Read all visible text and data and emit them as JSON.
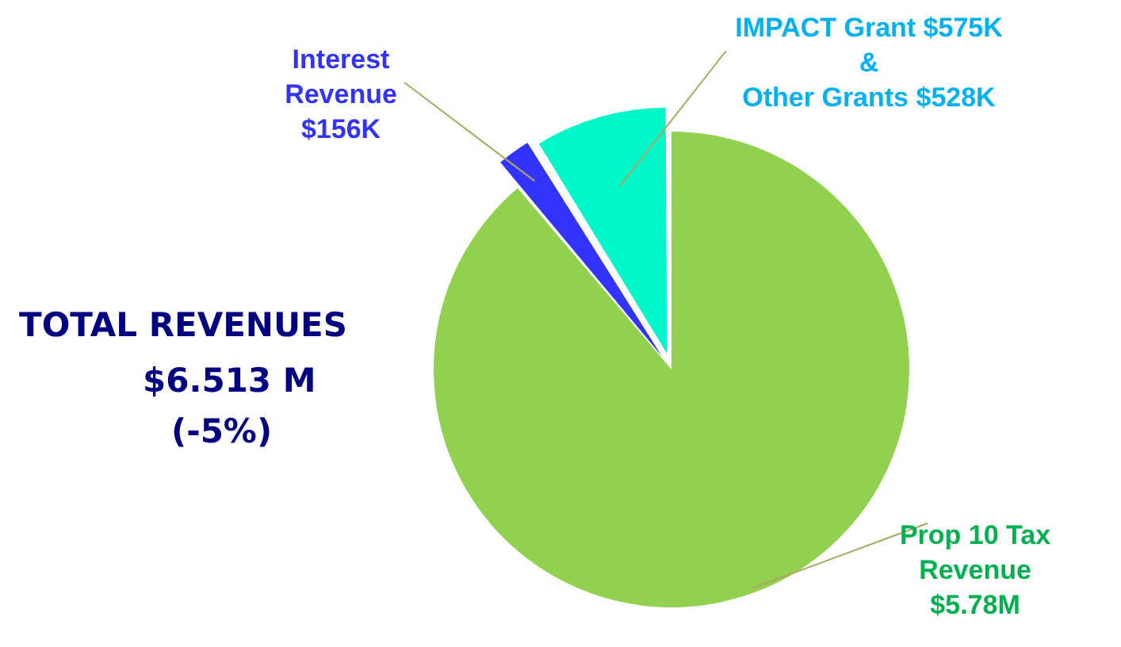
{
  "chart_data": {
    "type": "pie",
    "categories": [
      "Prop 10 Tax\nRevenue\n$5.78M",
      "Interest\nRevenue\n$156K",
      "IMPACT Grant $575K\n&\nOther Grants $528K"
    ],
    "values": [
      88.8,
      2.4,
      8.8
    ],
    "colors": [
      "#92d050",
      "#3333ff",
      "#00f7c8"
    ],
    "annotations": [
      "TOTAL REVENUES",
      "$6.513 M",
      "(-5%)"
    ],
    "legend": false
  }
}
